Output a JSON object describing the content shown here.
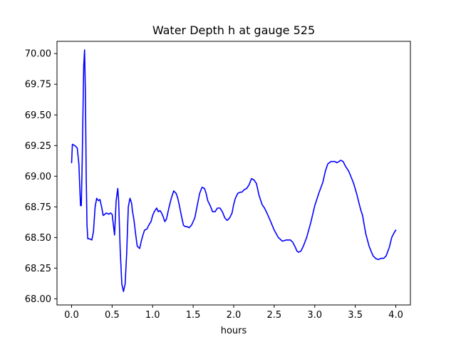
{
  "chart_data": {
    "type": "line",
    "title": "Water Depth h at gauge 525",
    "xlabel": "hours",
    "ylabel": "",
    "xlim": [
      -0.18,
      4.18
    ],
    "ylim": [
      67.95,
      70.1
    ],
    "x_ticks": [
      0.0,
      0.5,
      1.0,
      1.5,
      2.0,
      2.5,
      3.0,
      3.5,
      4.0
    ],
    "x_tick_labels": [
      "0.0",
      "0.5",
      "1.0",
      "1.5",
      "2.0",
      "2.5",
      "3.0",
      "3.5",
      "4.0"
    ],
    "y_ticks": [
      68.0,
      68.25,
      68.5,
      68.75,
      69.0,
      69.25,
      69.5,
      69.75,
      70.0
    ],
    "y_tick_labels": [
      "68.00",
      "68.25",
      "68.50",
      "68.75",
      "69.00",
      "69.25",
      "69.50",
      "69.75",
      "70.00"
    ],
    "grid": false,
    "legend": "none",
    "series": [
      {
        "color": "#0000ff",
        "x": [
          0.0,
          0.01,
          0.04,
          0.07,
          0.09,
          0.11,
          0.12,
          0.13,
          0.15,
          0.16,
          0.17,
          0.18,
          0.19,
          0.2,
          0.22,
          0.25,
          0.27,
          0.29,
          0.31,
          0.33,
          0.35,
          0.37,
          0.39,
          0.41,
          0.43,
          0.46,
          0.48,
          0.5,
          0.53,
          0.55,
          0.57,
          0.58,
          0.6,
          0.62,
          0.64,
          0.66,
          0.68,
          0.7,
          0.72,
          0.74,
          0.75,
          0.77,
          0.79,
          0.81,
          0.84,
          0.86,
          0.88,
          0.9,
          0.93,
          0.96,
          0.98,
          1.0,
          1.02,
          1.05,
          1.07,
          1.09,
          1.11,
          1.13,
          1.15,
          1.17,
          1.2,
          1.23,
          1.26,
          1.29,
          1.31,
          1.33,
          1.36,
          1.38,
          1.4,
          1.42,
          1.45,
          1.48,
          1.52,
          1.55,
          1.58,
          1.61,
          1.64,
          1.66,
          1.68,
          1.71,
          1.74,
          1.77,
          1.8,
          1.83,
          1.86,
          1.89,
          1.92,
          1.95,
          1.98,
          2.0,
          2.02,
          2.05,
          2.08,
          2.1,
          2.13,
          2.16,
          2.19,
          2.22,
          2.25,
          2.28,
          2.31,
          2.33,
          2.35,
          2.38,
          2.41,
          2.45,
          2.5,
          2.55,
          2.6,
          2.65,
          2.7,
          2.73,
          2.76,
          2.78,
          2.8,
          2.83,
          2.86,
          2.9,
          2.95,
          3.0,
          3.05,
          3.1,
          3.13,
          3.16,
          3.2,
          3.25,
          3.27,
          3.3,
          3.32,
          3.35,
          3.38,
          3.42,
          3.45,
          3.48,
          3.52,
          3.55,
          3.57,
          3.59,
          3.61,
          3.63,
          3.65,
          3.67,
          3.7,
          3.72,
          3.75,
          3.78,
          3.82,
          3.85,
          3.88,
          3.92,
          3.95,
          3.98,
          4.0
        ],
        "y": [
          69.11,
          69.26,
          69.25,
          69.23,
          69.1,
          68.76,
          68.76,
          69.1,
          69.9,
          70.03,
          69.7,
          69.0,
          68.6,
          68.49,
          68.49,
          68.48,
          68.55,
          68.75,
          68.82,
          68.8,
          68.81,
          68.75,
          68.68,
          68.69,
          68.7,
          68.69,
          68.7,
          68.69,
          68.52,
          68.8,
          68.9,
          68.8,
          68.4,
          68.12,
          68.06,
          68.12,
          68.37,
          68.75,
          68.82,
          68.78,
          68.72,
          68.64,
          68.53,
          68.43,
          68.41,
          68.47,
          68.52,
          68.56,
          68.57,
          68.61,
          68.63,
          68.68,
          68.71,
          68.74,
          68.71,
          68.72,
          68.7,
          68.67,
          68.63,
          68.65,
          68.74,
          68.82,
          68.88,
          68.86,
          68.82,
          68.76,
          68.66,
          68.6,
          68.59,
          68.59,
          68.58,
          68.6,
          68.66,
          68.76,
          68.86,
          68.91,
          68.9,
          68.86,
          68.8,
          68.76,
          68.71,
          68.71,
          68.74,
          68.74,
          68.71,
          68.66,
          68.64,
          68.66,
          68.7,
          68.77,
          68.82,
          68.86,
          68.87,
          68.87,
          68.89,
          68.9,
          68.93,
          68.98,
          68.97,
          68.94,
          68.85,
          68.81,
          68.77,
          68.74,
          68.7,
          68.64,
          68.56,
          68.5,
          68.47,
          68.48,
          68.48,
          68.46,
          68.42,
          68.39,
          68.38,
          68.39,
          68.43,
          68.5,
          68.62,
          68.76,
          68.86,
          68.95,
          69.04,
          69.1,
          69.12,
          69.12,
          69.11,
          69.12,
          69.13,
          69.12,
          69.08,
          69.04,
          68.99,
          68.94,
          68.85,
          68.77,
          68.72,
          68.68,
          68.6,
          68.53,
          68.48,
          68.43,
          68.38,
          68.35,
          68.33,
          68.32,
          68.33,
          68.33,
          68.35,
          68.42,
          68.5,
          68.54,
          68.56
        ]
      }
    ]
  }
}
